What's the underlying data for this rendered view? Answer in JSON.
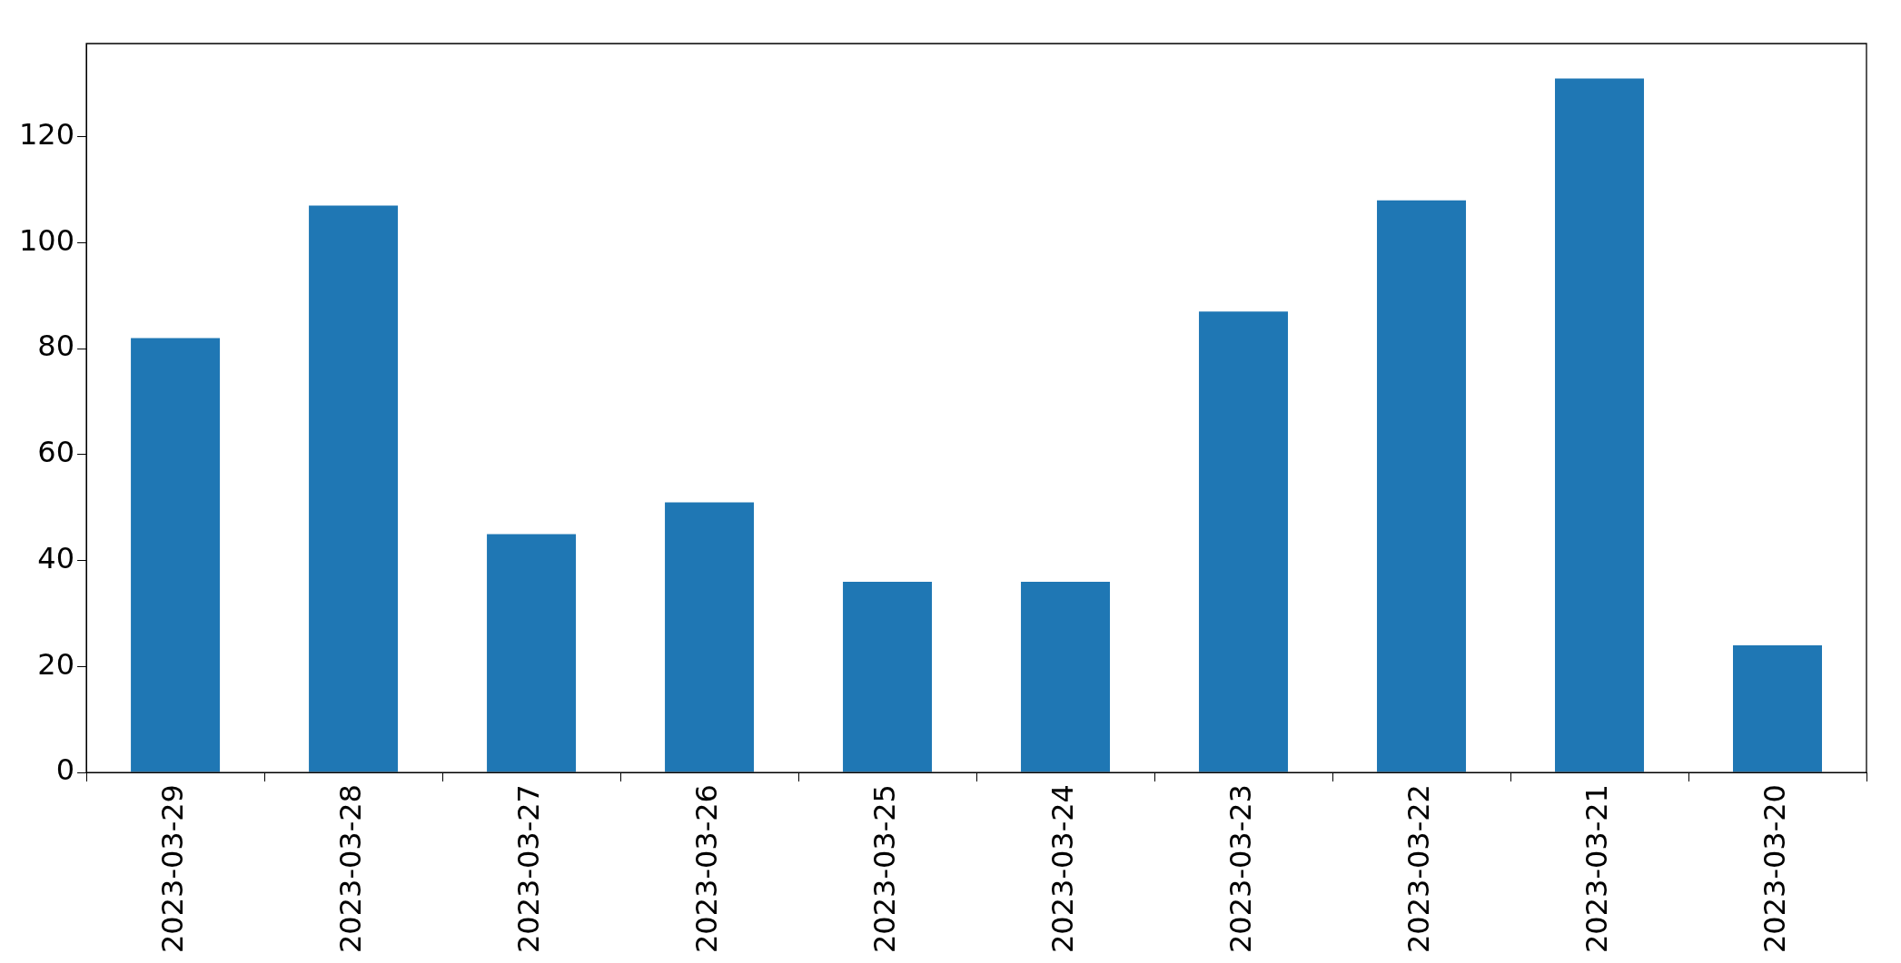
{
  "chart_data": {
    "type": "bar",
    "categories": [
      "2023-03-29",
      "2023-03-28",
      "2023-03-27",
      "2023-03-26",
      "2023-03-25",
      "2023-03-24",
      "2023-03-23",
      "2023-03-22",
      "2023-03-21",
      "2023-03-20"
    ],
    "values": [
      82,
      107,
      45,
      51,
      36,
      36,
      87,
      108,
      131,
      24
    ],
    "color": "#1f77b4",
    "ylim": [
      0,
      137.6
    ],
    "yticks": [
      0,
      20,
      40,
      60,
      80,
      100,
      120
    ],
    "grid": false,
    "legend": false
  }
}
